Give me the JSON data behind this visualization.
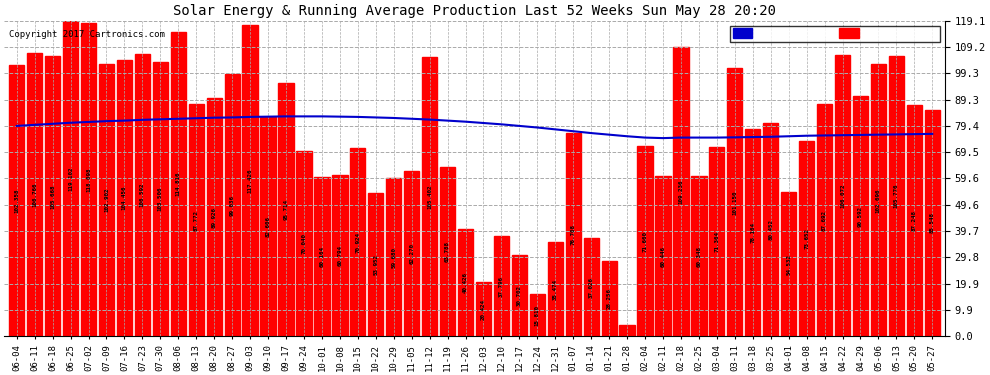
{
  "title": "Solar Energy & Running Average Production Last 52 Weeks Sun May 28 20:20",
  "copyright": "Copyright 2017 Cartronics.com",
  "yticks": [
    119.1,
    109.2,
    99.3,
    89.3,
    79.4,
    69.5,
    59.6,
    49.6,
    39.7,
    29.8,
    19.9,
    9.9,
    0.0
  ],
  "bar_color": "#ff0000",
  "avg_color": "#0000cc",
  "background_color": "#ffffff",
  "plot_bg_color": "#ffffff",
  "grid_color": "#aaaaaa",
  "legend_avg_bg": "#0000cc",
  "legend_weekly_bg": "#ff0000",
  "categories": [
    "06-04",
    "06-11",
    "06-18",
    "06-25",
    "07-02",
    "07-09",
    "07-16",
    "07-23",
    "07-30",
    "08-06",
    "08-13",
    "08-20",
    "08-27",
    "09-03",
    "09-10",
    "09-17",
    "09-24",
    "10-01",
    "10-08",
    "10-15",
    "10-22",
    "10-29",
    "11-05",
    "11-12",
    "11-19",
    "11-26",
    "12-03",
    "12-10",
    "12-17",
    "12-24",
    "12-31",
    "01-07",
    "01-14",
    "01-21",
    "01-28",
    "02-04",
    "02-11",
    "02-18",
    "02-25",
    "03-04",
    "03-11",
    "03-18",
    "03-25",
    "04-01",
    "04-08",
    "04-15",
    "04-22",
    "04-29",
    "05-06",
    "05-13",
    "05-20",
    "05-27"
  ],
  "weekly_values": [
    102.358,
    106.766,
    105.668,
    119.102,
    118.098,
    102.902,
    104.456,
    106.592,
    103.506,
    114.816,
    87.772,
    89.926,
    99.036,
    117.426,
    82.606,
    95.714,
    70.04,
    60.164,
    60.794,
    70.924,
    53.952,
    59.68,
    62.27,
    105.402,
    63.788,
    40.426,
    20.424,
    37.796,
    30.702,
    15.81,
    35.474,
    76.708,
    37.026,
    28.256,
    4.312,
    71.66,
    60.446,
    109.236,
    60.348,
    71.364,
    101.15,
    78.164,
    80.452,
    54.532,
    73.652,
    87.692,
    106.072,
    90.592,
    102.696,
    105.776,
    87.248,
    85.548
  ],
  "avg_values": [
    79.4,
    79.8,
    80.2,
    80.6,
    80.9,
    81.2,
    81.4,
    81.7,
    81.9,
    82.1,
    82.3,
    82.5,
    82.6,
    82.8,
    82.9,
    83.0,
    83.0,
    83.0,
    82.9,
    82.8,
    82.6,
    82.4,
    82.1,
    81.8,
    81.4,
    81.0,
    80.5,
    80.0,
    79.4,
    78.8,
    78.1,
    77.4,
    76.7,
    76.1,
    75.5,
    75.0,
    74.8,
    75.0,
    75.0,
    75.0,
    75.1,
    75.2,
    75.3,
    75.5,
    75.7,
    75.8,
    75.9,
    76.0,
    76.1,
    76.2,
    76.3,
    76.4
  ]
}
